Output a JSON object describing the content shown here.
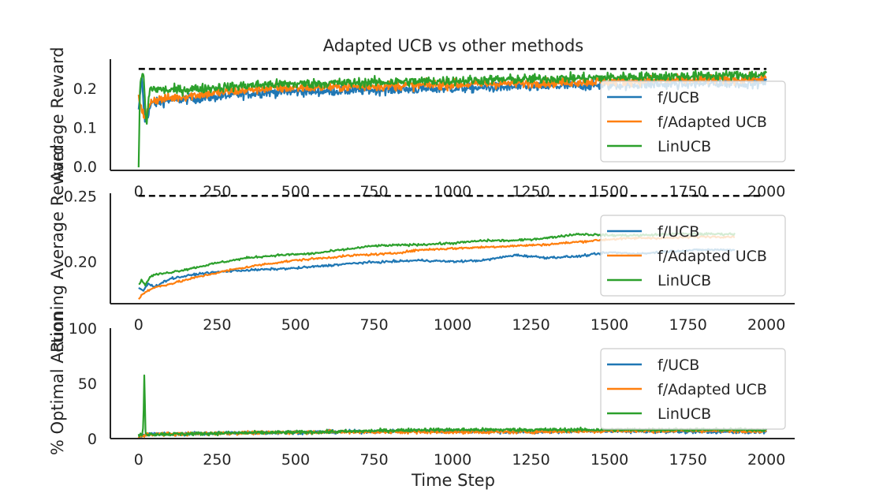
{
  "chart_data": {
    "title": "Adapted UCB vs other methods",
    "xlabel": "Time Step",
    "colors": {
      "f/UCB": "#1f77b4",
      "f/Adapted UCB": "#ff7f0e",
      "LinUCB": "#2ca02c",
      "reference": "#000000"
    },
    "panels": [
      {
        "type": "line",
        "ylabel": "Average Reward",
        "xlim": [
          -90,
          2090
        ],
        "ylim": [
          -0.01,
          0.275
        ],
        "xticks": [
          0,
          250,
          500,
          750,
          1000,
          1250,
          1500,
          1750,
          2000
        ],
        "yticks": [
          0.0,
          0.1,
          0.2
        ],
        "ytick_labels": [
          "0.0",
          "0.1",
          "0.2"
        ],
        "grid": false,
        "legend": "right",
        "reference_line": {
          "y": 0.25,
          "x": [
            0,
            2000
          ],
          "style": "dashed"
        },
        "series": [
          {
            "name": "f/UCB",
            "x": [
              0,
              10,
              20,
              40,
              100,
              200,
              400,
              700,
              1000,
              1300,
              1600,
              2000
            ],
            "y": [
              0.14,
              0.23,
              0.11,
              0.16,
              0.17,
              0.175,
              0.19,
              0.195,
              0.2,
              0.205,
              0.21,
              0.215
            ],
            "noise": 0.012
          },
          {
            "name": "f/Adapted UCB",
            "x": [
              0,
              10,
              20,
              40,
              100,
              200,
              400,
              700,
              1000,
              1300,
              1600,
              2000
            ],
            "y": [
              0.18,
              0.15,
              0.12,
              0.17,
              0.175,
              0.185,
              0.2,
              0.205,
              0.21,
              0.215,
              0.22,
              0.225
            ],
            "noise": 0.012
          },
          {
            "name": "LinUCB",
            "x": [
              0,
              5,
              15,
              25,
              35,
              100,
              200,
              400,
              700,
              1000,
              1300,
              1600,
              2000
            ],
            "y": [
              0.0,
              0.22,
              0.24,
              0.1,
              0.2,
              0.195,
              0.2,
              0.21,
              0.215,
              0.22,
              0.225,
              0.23,
              0.235
            ],
            "noise": 0.012
          }
        ]
      },
      {
        "type": "line",
        "ylabel": "Running Average Reward",
        "xlim": [
          -90,
          2090
        ],
        "ylim": [
          0.168,
          0.252
        ],
        "xticks": [
          0,
          250,
          500,
          750,
          1000,
          1250,
          1500,
          1750,
          2000
        ],
        "yticks": [
          0.2,
          0.25
        ],
        "ytick_labels": [
          "0.20",
          "0.25"
        ],
        "grid": false,
        "legend": "right",
        "reference_line": {
          "y": 0.25,
          "x": [
            0,
            1990
          ],
          "style": "dashed"
        },
        "series": [
          {
            "name": "f/UCB",
            "x": [
              0,
              15,
              30,
              50,
              100,
              200,
              300,
              500,
              700,
              900,
              1000,
              1100,
              1200,
              1300,
              1400,
              1500,
              1600,
              1700,
              1800,
              1900
            ],
            "y": [
              0.18,
              0.178,
              0.183,
              0.181,
              0.187,
              0.191,
              0.193,
              0.195,
              0.199,
              0.201,
              0.2,
              0.201,
              0.205,
              0.203,
              0.204,
              0.207,
              0.206,
              0.208,
              0.209,
              0.209
            ],
            "noise": 0.0008
          },
          {
            "name": "f/Adapted UCB",
            "x": [
              0,
              10,
              30,
              60,
              100,
              200,
              300,
              400,
              500,
              600,
              700,
              800,
              900,
              1000,
              1100,
              1200,
              1300,
              1400,
              1500,
              1600,
              1700,
              1800,
              1900
            ],
            "y": [
              0.171,
              0.175,
              0.178,
              0.181,
              0.183,
              0.189,
              0.194,
              0.198,
              0.201,
              0.203,
              0.205,
              0.206,
              0.209,
              0.21,
              0.211,
              0.212,
              0.213,
              0.215,
              0.217,
              0.218,
              0.218,
              0.219,
              0.219
            ],
            "noise": 0.0008
          },
          {
            "name": "LinUCB",
            "x": [
              0,
              10,
              20,
              35,
              50,
              80,
              150,
              250,
              350,
              450,
              550,
              650,
              750,
              900,
              1000,
              1100,
              1200,
              1300,
              1400,
              1500,
              1600,
              1700,
              1800,
              1900
            ],
            "y": [
              0.183,
              0.186,
              0.182,
              0.188,
              0.19,
              0.191,
              0.194,
              0.199,
              0.203,
              0.205,
              0.206,
              0.209,
              0.212,
              0.213,
              0.214,
              0.216,
              0.216,
              0.218,
              0.221,
              0.22,
              0.22,
              0.221,
              0.221,
              0.221
            ],
            "noise": 0.0008
          }
        ]
      },
      {
        "type": "line",
        "ylabel": "% Optimal Action",
        "xlim": [
          -90,
          2090
        ],
        "ylim": [
          0,
          100
        ],
        "xticks": [
          0,
          250,
          500,
          750,
          1000,
          1250,
          1500,
          1750,
          2000
        ],
        "yticks": [
          0,
          50,
          100
        ],
        "ytick_labels": [
          "0",
          "50",
          "100"
        ],
        "grid": false,
        "legend": "right",
        "series": [
          {
            "name": "f/UCB",
            "x": [
              0,
              15,
              30,
              100,
              300,
              600,
              900,
              1200,
              1500,
              1800,
              2000
            ],
            "y": [
              2,
              3,
              4,
              4,
              5,
              6,
              7,
              6,
              7,
              6,
              6
            ],
            "noise": 1.5
          },
          {
            "name": "f/Adapted UCB",
            "x": [
              0,
              15,
              30,
              100,
              300,
              600,
              900,
              1200,
              1500,
              1800,
              2000
            ],
            "y": [
              2,
              2,
              4,
              4,
              5,
              6,
              6,
              6,
              7,
              7,
              7
            ],
            "noise": 1.5
          },
          {
            "name": "LinUCB",
            "x": [
              0,
              10,
              15,
              18,
              22,
              30,
              100,
              300,
              600,
              900,
              1200,
              1500,
              1800,
              2000
            ],
            "y": [
              3,
              3,
              10,
              58,
              5,
              4,
              4,
              5,
              6,
              8,
              8,
              8,
              8,
              8
            ],
            "noise": 1.5
          }
        ]
      }
    ]
  }
}
